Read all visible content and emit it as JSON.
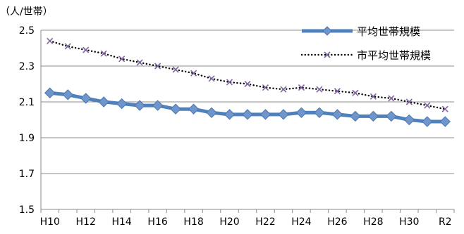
{
  "chart_data": {
    "type": "line",
    "unit_label": "（人/世帯）",
    "ylim": [
      1.5,
      2.5
    ],
    "yticks": [
      "1.5",
      "1.7",
      "1.9",
      "2.1",
      "2.3",
      "2.5"
    ],
    "grid": "horizontal",
    "legend_position": "top-right",
    "x": [
      "H10",
      "H11",
      "H12",
      "H13",
      "H14",
      "H15",
      "H16",
      "H17",
      "H18",
      "H19",
      "H20",
      "H21",
      "H22",
      "H23",
      "H24",
      "H25",
      "H26",
      "H27",
      "H28",
      "H29",
      "H30",
      "R1",
      "R2"
    ],
    "xtick_labels": [
      "H10",
      "H12",
      "H14",
      "H16",
      "H18",
      "H20",
      "H22",
      "H24",
      "H26",
      "H28",
      "H30",
      "R2"
    ],
    "series": [
      {
        "name": "平均世帯規模",
        "color": "#4F81BD",
        "marker": "diamond",
        "line_style": "solid",
        "values": [
          2.15,
          2.14,
          2.12,
          2.1,
          2.09,
          2.08,
          2.08,
          2.06,
          2.06,
          2.04,
          2.03,
          2.03,
          2.03,
          2.03,
          2.04,
          2.04,
          2.03,
          2.02,
          2.02,
          2.02,
          2.0,
          1.99,
          1.99
        ]
      },
      {
        "name": "市平均世帯規模",
        "color": "#000000",
        "marker": "x",
        "marker_color": "#8064A2",
        "line_style": "dotted",
        "values": [
          2.44,
          2.41,
          2.39,
          2.37,
          2.34,
          2.32,
          2.3,
          2.28,
          2.26,
          2.23,
          2.21,
          2.2,
          2.18,
          2.17,
          2.18,
          2.17,
          2.16,
          2.15,
          2.13,
          2.12,
          2.1,
          2.08,
          2.06
        ]
      }
    ]
  }
}
